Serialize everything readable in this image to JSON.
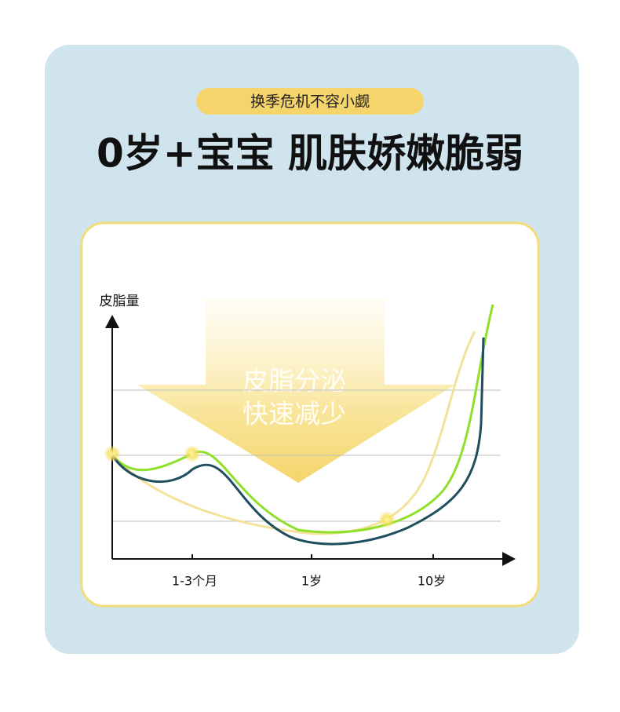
{
  "badge": "换季危机不容小觑",
  "title": "0岁+宝宝 肌肤娇嫩脆弱",
  "chart": {
    "y_axis_label": "皮脂量",
    "arrow_text": [
      "皮脂分泌",
      "快速减少"
    ],
    "x_labels": [
      "1-3个月",
      "1岁",
      "10岁"
    ]
  }
}
